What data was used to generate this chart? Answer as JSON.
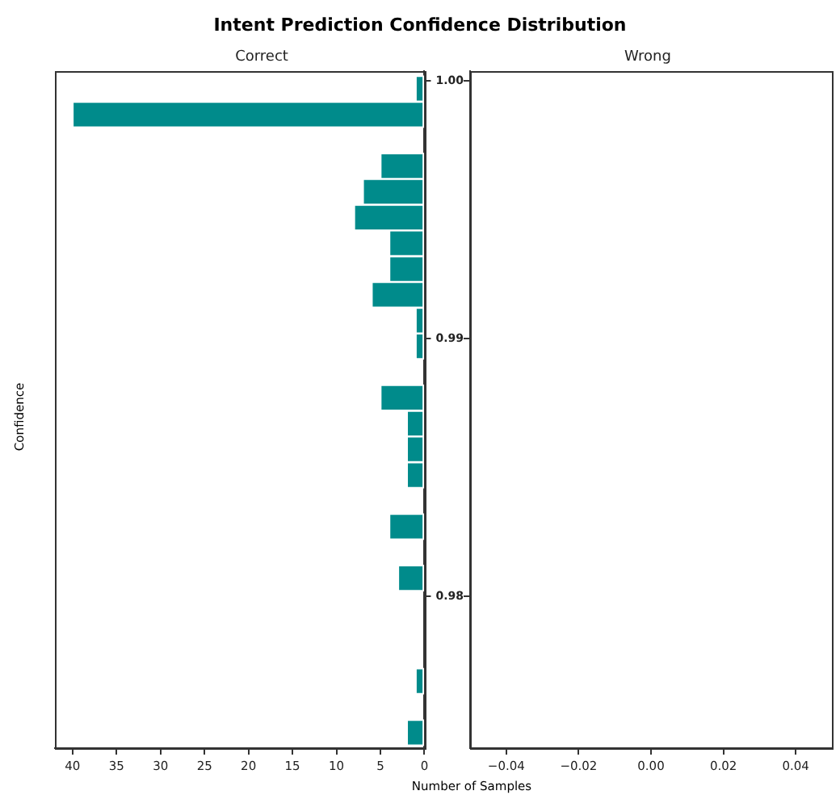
{
  "chart_data": [
    {
      "type": "histogram",
      "orientation": "horizontal",
      "title": "Intent Prediction Confidence Distribution",
      "subtitle": "Correct",
      "xlabel": "Number of Samples",
      "ylabel": "Confidence",
      "color": "#008b8b",
      "bins": [
        0.9742,
        0.9752,
        0.9762,
        0.9772,
        0.9782,
        0.9792,
        0.9802,
        0.9812,
        0.9822,
        0.9832,
        0.9842,
        0.9852,
        0.9862,
        0.9872,
        0.9882,
        0.9892,
        0.9902,
        0.9912,
        0.9922,
        0.9932,
        0.9942,
        0.9952,
        0.9962,
        0.9972,
        0.9982,
        0.9992,
        1.0002
      ],
      "values": [
        2,
        0,
        1,
        0,
        0,
        0,
        3,
        0,
        4,
        0,
        2,
        2,
        2,
        5,
        0,
        1,
        1,
        6,
        4,
        4,
        8,
        7,
        5,
        0,
        40,
        1
      ],
      "xlim": [
        42,
        0
      ],
      "xticks": [
        40,
        35,
        30,
        25,
        20,
        15,
        10,
        5,
        0
      ],
      "ylim": [
        0.9741,
        1.0004
      ],
      "yticks": [
        0.98,
        0.99,
        {
          "value": 1.0,
          "label": "1.00"
        }
      ],
      "grid": false,
      "legend": false
    },
    {
      "type": "histogram",
      "orientation": "horizontal",
      "subtitle": "Wrong",
      "color": "#008b8b",
      "bins": [
        0.9742,
        0.9752,
        0.9762,
        0.9772,
        0.9782,
        0.9792,
        0.9802,
        0.9812,
        0.9822,
        0.9832,
        0.9842,
        0.9852,
        0.9862,
        0.9872,
        0.9882,
        0.9892,
        0.9902,
        0.9912,
        0.9922,
        0.9932,
        0.9942,
        0.9952,
        0.9962,
        0.9972,
        0.9982,
        0.9992,
        1.0002
      ],
      "values": [
        0,
        0,
        0,
        0,
        0,
        0,
        0,
        0,
        0,
        0,
        0,
        0,
        0,
        0,
        0,
        0,
        0,
        0,
        0,
        0,
        0,
        0,
        0,
        0,
        0,
        0
      ],
      "xlim": [
        -0.05,
        0.05
      ],
      "xticks": [
        {
          "value": -0.04,
          "label": "−0.04"
        },
        {
          "value": -0.02,
          "label": "−0.02"
        },
        {
          "value": 0,
          "label": "0.00"
        },
        {
          "value": 0.02,
          "label": "0.02"
        },
        {
          "value": 0.04,
          "label": "0.04"
        }
      ],
      "ylim": [
        0.9741,
        1.0004
      ],
      "yticks": [
        {
          "value": 0.98,
          "label": null
        },
        {
          "value": 0.99,
          "label": null
        },
        {
          "value": 1.0,
          "label": null
        }
      ],
      "tick_labels": "x",
      "grid": false,
      "legend": false
    }
  ]
}
